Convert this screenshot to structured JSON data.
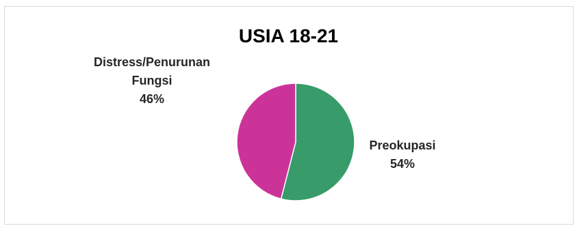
{
  "chart_data": {
    "type": "pie",
    "title": "USIA 18-21",
    "slices": [
      {
        "name": "Preokupasi",
        "value": 54,
        "label": "54%",
        "color": "#379C69"
      },
      {
        "name": "Distress/Penurunan Fungsi",
        "name_lines": [
          "Distress/Penurunan",
          "Fungsi"
        ],
        "value": 46,
        "label": "46%",
        "color": "#CC3399"
      }
    ],
    "start_angle_deg": 0,
    "direction": "clockwise",
    "legend": "none",
    "data_labels": "outside"
  }
}
